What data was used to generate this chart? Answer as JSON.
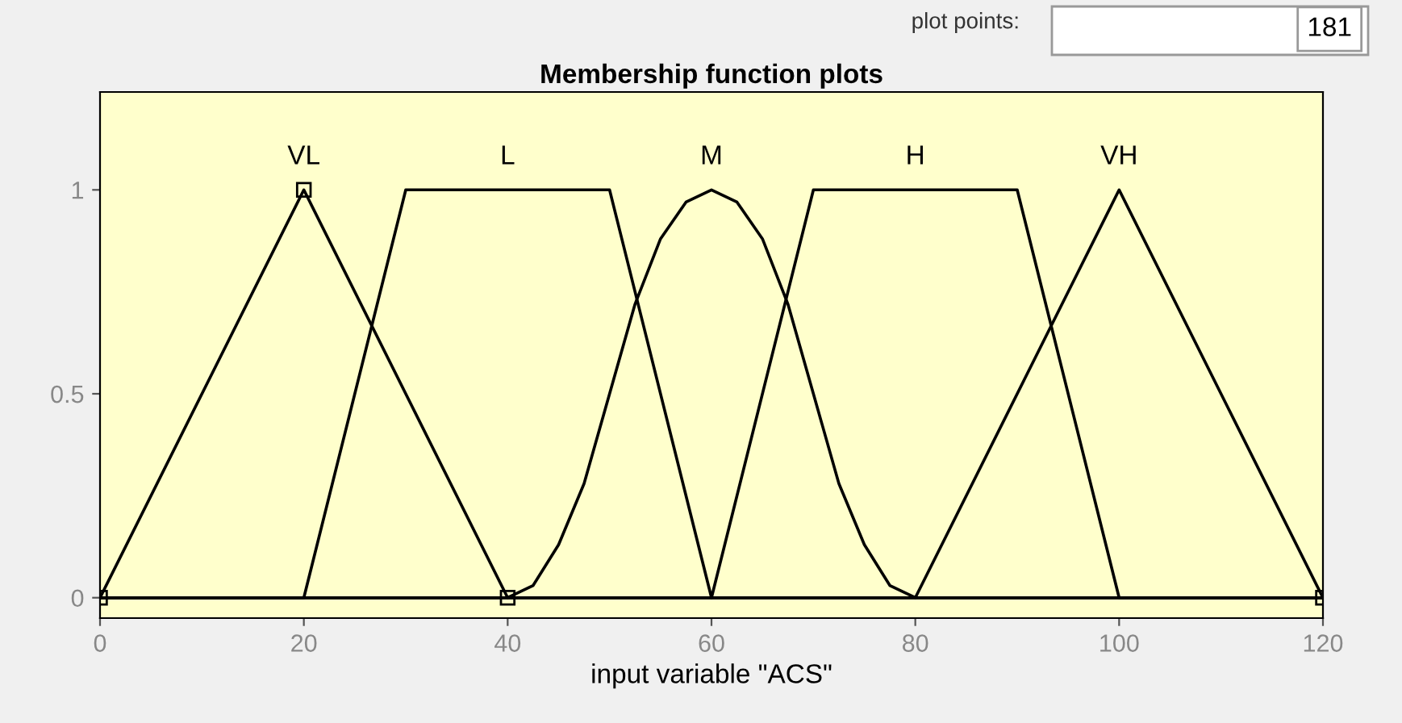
{
  "chart_data": {
    "type": "line",
    "title": "Membership function plots",
    "xlabel": "input variable \"ACS\"",
    "xlim": [
      0,
      120
    ],
    "xticks": [
      0,
      20,
      40,
      60,
      80,
      100,
      120
    ],
    "ylim": [
      -0.05,
      1.24
    ],
    "yticks": [
      0,
      0.5,
      1
    ],
    "grid": false,
    "legend": false,
    "series": [
      {
        "color": "#000000",
        "marker": "square",
        "x": [
          0,
          20,
          40,
          120
        ],
        "values": [
          0,
          1,
          0,
          0
        ]
      },
      {
        "color": "#000000",
        "x": [
          0,
          20,
          30,
          50,
          60,
          120
        ],
        "values": [
          0,
          0,
          1,
          1,
          0,
          0
        ]
      },
      {
        "color": "#000000",
        "x": [
          0,
          40,
          42.5,
          45,
          47.5,
          50,
          52.5,
          55,
          57.5,
          60,
          62.5,
          65,
          67.5,
          70,
          72.5,
          75,
          77.5,
          80,
          120
        ],
        "values": [
          0,
          0,
          0.03,
          0.13,
          0.28,
          0.5,
          0.72,
          0.88,
          0.97,
          1,
          0.97,
          0.88,
          0.72,
          0.5,
          0.28,
          0.13,
          0.03,
          0,
          0
        ]
      },
      {
        "color": "#000000",
        "x": [
          0,
          60,
          70,
          90,
          100,
          120
        ],
        "values": [
          0,
          0,
          1,
          1,
          0,
          0
        ]
      },
      {
        "color": "#000000",
        "x": [
          0,
          80,
          100,
          120
        ],
        "values": [
          0,
          0,
          1,
          0
        ]
      }
    ],
    "annotations": [
      "VL",
      "L",
      "M",
      "H",
      "VH",
      "plot points:",
      "181"
    ]
  }
}
